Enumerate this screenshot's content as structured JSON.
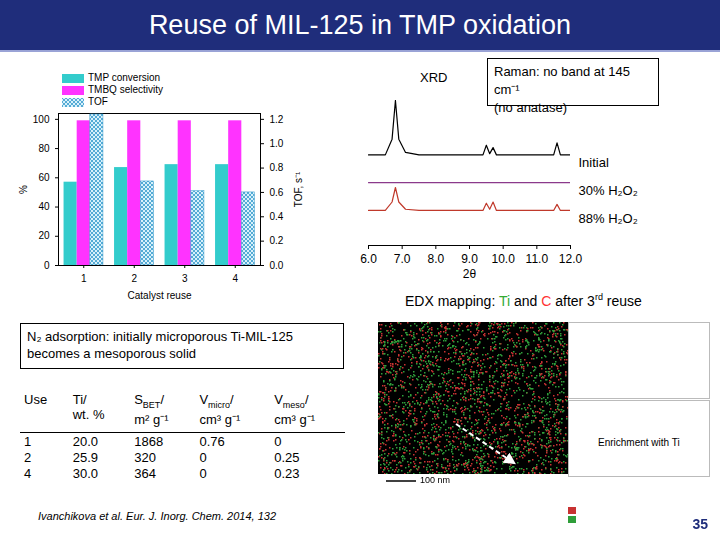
{
  "slide": {
    "title": "Reuse of MIL-125 in TMP oxidation",
    "page_number": "35",
    "raman_note": [
      "Raman: no band at 145 cm⁻¹",
      "(no anatase)"
    ],
    "n2_note": "N₂ adsorption: initially microporous Ti-MIL-125 becomes a mesoporous solid",
    "citation": "Ivanchikova et al. Eur. J. Inorg. Chem. 2014, 132",
    "edx": {
      "heading": [
        {
          "text": "EDX mapping: ",
          "color": "#000000"
        },
        {
          "text": "Ti",
          "color": "#33aa33"
        },
        {
          "text": " and ",
          "color": "#000000"
        },
        {
          "text": "C",
          "color": "#ff3333"
        },
        {
          "text": " after 3",
          "color": "#000000"
        },
        {
          "text": "rd",
          "color": "#000000",
          "superscript": true
        },
        {
          "text": " reuse",
          "color": "#000000"
        }
      ],
      "annotation": "Enrichment with Ti",
      "scale_bar": "100 nm"
    }
  },
  "chart_data": [
    {
      "type": "bar",
      "categories": [
        "1",
        "2",
        "3",
        "4"
      ],
      "xlabel": "Catalyst reuse",
      "ylabel": "%",
      "y2label": "TOF, s⁻¹",
      "ylim": [
        0,
        104
      ],
      "yticks": [
        0,
        20,
        40,
        60,
        80,
        100
      ],
      "y2lim": [
        0,
        1.248
      ],
      "y2ticks": [
        {
          "value": 0,
          "label": "0.0"
        },
        0.2,
        0.4,
        0.6,
        0.8,
        {
          "value": 1,
          "label": "1.0"
        },
        1.2
      ],
      "legend": "top-left",
      "series": [
        {
          "name": "TMP conversion",
          "color": "#33cccc",
          "values": [
            57,
            67,
            69,
            69
          ]
        },
        {
          "name": "TMBQ selectivity",
          "color": "#ff33ff",
          "values": [
            99,
            99,
            99,
            99
          ]
        },
        {
          "name": "TOF",
          "color": "#3399cc",
          "marker": "crosshatch",
          "axis": "y2",
          "values": [
            1.24,
            0.69,
            0.61,
            0.6
          ]
        }
      ]
    },
    {
      "type": "line",
      "title": "XRD",
      "xlabel": "2θ",
      "x": [
        6,
        6.5,
        6.7,
        6.8,
        6.9,
        7.1,
        7.5,
        8,
        8.5,
        9,
        9.4,
        9.5,
        9.6,
        9.7,
        9.8,
        10.2,
        10.6,
        11,
        11.5,
        11.6,
        11.7,
        12
      ],
      "xlim": [
        6,
        12
      ],
      "xticks": [
        6,
        7,
        8,
        9,
        10,
        11,
        12
      ],
      "ylim": [
        0,
        12
      ],
      "tick_labels": "x",
      "series": [
        {
          "name": "Initial",
          "color": "#000000",
          "values": [
            7.5,
            7.5,
            8.8,
            12,
            8.8,
            7.7,
            7.5,
            7.5,
            7.5,
            7.5,
            7.5,
            8.3,
            7.6,
            8.1,
            7.5,
            7.5,
            7.5,
            7.5,
            7.5,
            8.5,
            7.5,
            7.5
          ]
        },
        {
          "name": "30% H₂O₂",
          "color": "#8b3a8b",
          "values": [
            5.2,
            5.2,
            5.2,
            5.2,
            5.2,
            5.2,
            5.2,
            5.2,
            5.2,
            5.2,
            5.2,
            5.2,
            5.2,
            5.2,
            5.2,
            5.2,
            5.2,
            5.2,
            5.2,
            5.2,
            5.2,
            5.2
          ]
        },
        {
          "name": "88% H₂O₂",
          "color": "#c0392b",
          "values": [
            2.9,
            2.9,
            3.6,
            4.8,
            3.6,
            3.0,
            2.9,
            2.9,
            2.9,
            2.9,
            2.9,
            3.5,
            3.0,
            3.6,
            2.9,
            2.9,
            2.9,
            2.9,
            2.9,
            3.4,
            2.9,
            2.9
          ]
        }
      ]
    }
  ],
  "table": {
    "header": [
      {
        "text": "Use"
      },
      {
        "text": "Ti/",
        "unit": "wt. %"
      },
      {
        "text": "S",
        "sub": "BET",
        "after": "/",
        "unit": "m² g⁻¹"
      },
      {
        "text": "V",
        "sub": "micro",
        "after": "/",
        "unit": "cm³ g⁻¹"
      },
      {
        "text": "V",
        "sub": "meso",
        "after": "/",
        "unit": "cm³ g⁻¹"
      }
    ],
    "rows": [
      [
        "1",
        "20.0",
        "1868",
        "0.76",
        "0"
      ],
      [
        "2",
        "25.9",
        "320",
        "0",
        "0.25"
      ],
      [
        "4",
        "30.0",
        "364",
        "0",
        "0.23"
      ]
    ]
  }
}
